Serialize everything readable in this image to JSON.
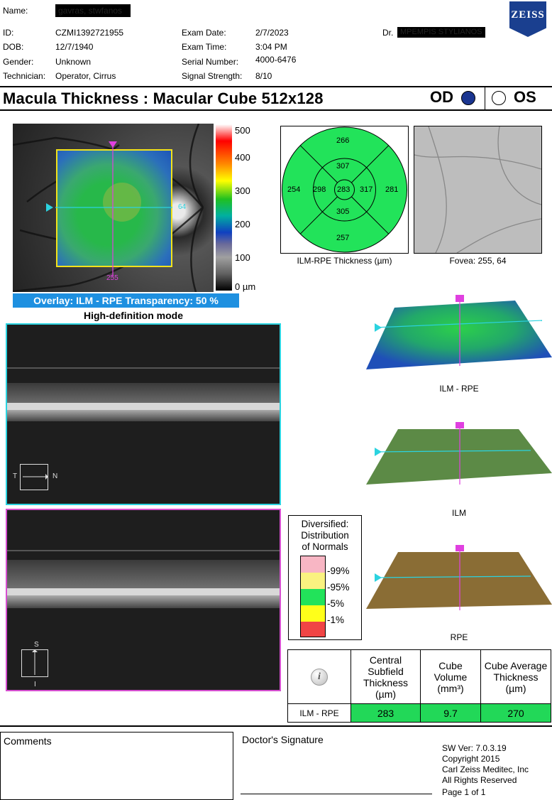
{
  "header": {
    "name_label": "Name:",
    "name_value": "gavras, stwfanos",
    "id_label": "ID:",
    "id_value": "CZMI1392721955",
    "dob_label": "DOB:",
    "dob_value": "12/7/1940",
    "gender_label": "Gender:",
    "gender_value": "Unknown",
    "technician_label": "Technician:",
    "technician_value": "Operator, Cirrus",
    "exam_date_label": "Exam Date:",
    "exam_date_value": "2/7/2023",
    "exam_time_label": "Exam Time:",
    "exam_time_value": "3:04 PM",
    "serial_label": "Serial Number:",
    "serial_value": "4000-6476",
    "signal_label": "Signal Strength:",
    "signal_value": "8/10",
    "doctor_label": "Dr.",
    "doctor_value": "MPEMPIS STYLIANOS",
    "logo_text": "ZEISS"
  },
  "title": "Macula Thickness : Macular Cube 512x128",
  "eyes": {
    "od": "OD",
    "os": "OS",
    "selected": "OD",
    "od_color": "#1a3590"
  },
  "fundus": {
    "scale_labels": [
      "500",
      "400",
      "300",
      "200",
      "100",
      "0 µm"
    ],
    "h_marker": "64",
    "v_marker": "255",
    "overlay_text": "Overlay: ILM - RPE  Transparency: 50 %",
    "mode_text": "High-definition mode"
  },
  "etdrs": {
    "caption": "ILM-RPE Thickness (µm)",
    "outer_superior": "266",
    "inner_superior": "307",
    "outer_temporal": "254",
    "inner_temporal": "298",
    "center": "283",
    "inner_nasal": "317",
    "outer_nasal": "281",
    "inner_inferior": "305",
    "outer_inferior": "257",
    "fill_color": "#22e35a"
  },
  "fovea": {
    "caption": "Fovea: 255, 64"
  },
  "oct_scans": {
    "scan1_orientation": {
      "left": "T",
      "right": "N"
    },
    "scan2_orientation": {
      "top": "S",
      "bottom": "I"
    }
  },
  "surfaces": [
    {
      "label": "ILM - RPE"
    },
    {
      "label": "ILM"
    },
    {
      "label": "RPE"
    }
  ],
  "legend": {
    "title_lines": [
      "Diversified:",
      "Distribution",
      "of Normals"
    ],
    "ticks": [
      "99%",
      "95%",
      "5%",
      "1%"
    ],
    "colors": [
      "#f8b6c4",
      "#faf280",
      "#22e35a",
      "#ffff1a",
      "#f04545"
    ]
  },
  "results_table": {
    "headers": [
      "Central Subfield Thickness (µm)",
      "Cube Volume (mm³)",
      "Cube Average Thickness (µm)"
    ],
    "row_label": "ILM - RPE",
    "values": [
      "283",
      "9.7",
      "270"
    ],
    "info_icon": "info-icon"
  },
  "footer": {
    "comments_label": "Comments",
    "signature_label": "Doctor's Signature",
    "sw_version": "SW Ver: 7.0.3.19",
    "copyright": "Copyright 2015",
    "company": "Carl Zeiss Meditec, Inc",
    "rights": "All Rights Reserved",
    "page": "Page 1 of 1"
  }
}
